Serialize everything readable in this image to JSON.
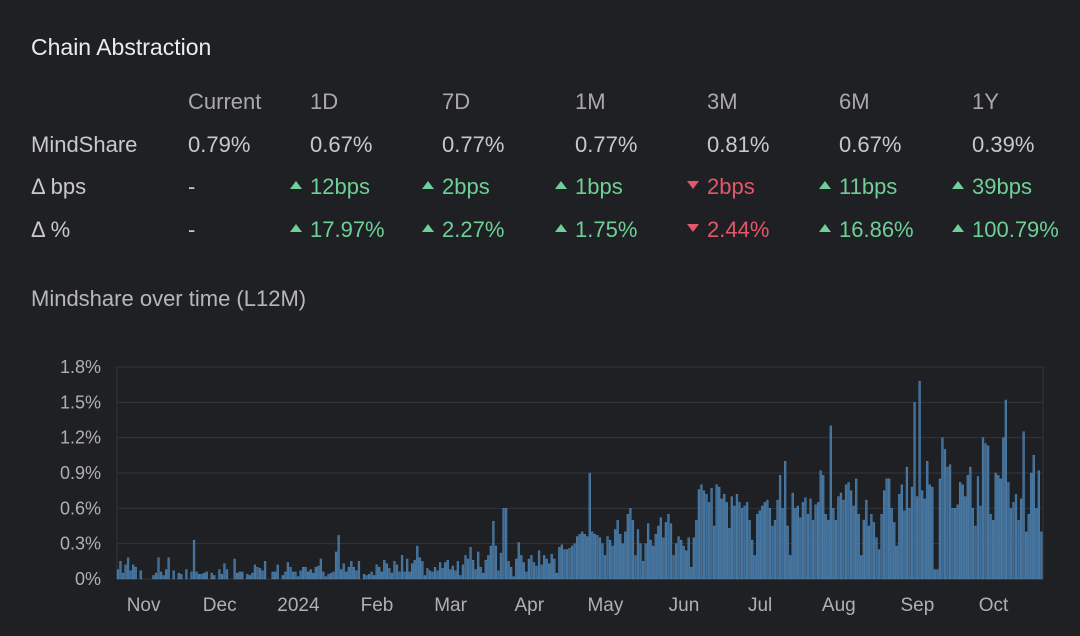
{
  "title": "Chain Abstraction",
  "table": {
    "headers": [
      "",
      "Current",
      "1D",
      "7D",
      "1M",
      "3M",
      "6M",
      "1Y"
    ],
    "rows": [
      {
        "label": "MindShare",
        "cells": [
          {
            "v": "0.79%",
            "dir": ""
          },
          {
            "v": "0.67%",
            "dir": ""
          },
          {
            "v": "0.77%",
            "dir": ""
          },
          {
            "v": "0.77%",
            "dir": ""
          },
          {
            "v": "0.81%",
            "dir": ""
          },
          {
            "v": "0.67%",
            "dir": ""
          },
          {
            "v": "0.39%",
            "dir": ""
          }
        ]
      },
      {
        "label": "Δ bps",
        "cells": [
          {
            "v": "-",
            "dir": ""
          },
          {
            "v": "12bps",
            "dir": "up"
          },
          {
            "v": "2bps",
            "dir": "up"
          },
          {
            "v": "1bps",
            "dir": "up"
          },
          {
            "v": "2bps",
            "dir": "down"
          },
          {
            "v": "11bps",
            "dir": "up"
          },
          {
            "v": "39bps",
            "dir": "up"
          }
        ]
      },
      {
        "label": "Δ %",
        "cells": [
          {
            "v": "-",
            "dir": ""
          },
          {
            "v": "17.97%",
            "dir": "up"
          },
          {
            "v": "2.27%",
            "dir": "up"
          },
          {
            "v": "1.75%",
            "dir": "up"
          },
          {
            "v": "2.44%",
            "dir": "down"
          },
          {
            "v": "16.86%",
            "dir": "up"
          },
          {
            "v": "100.79%",
            "dir": "up"
          }
        ]
      }
    ]
  },
  "colors": {
    "up": "#6fcf97",
    "down": "#e5566b",
    "bar": "#3f6f98",
    "bar_edge": "#5a8fbf"
  },
  "chart_subtitle": "Mindshare over time (L12M)",
  "chart_data": {
    "type": "bar",
    "title": "Mindshare over time (L12M)",
    "xlabel": "",
    "ylabel": "",
    "ylim": [
      0,
      1.8
    ],
    "y_ticks": [
      {
        "v": 0,
        "label": "0%"
      },
      {
        "v": 0.3,
        "label": "0.3%"
      },
      {
        "v": 0.6,
        "label": "0.6%"
      },
      {
        "v": 0.9,
        "label": "0.9%"
      },
      {
        "v": 1.2,
        "label": "1.2%"
      },
      {
        "v": 1.5,
        "label": "1.5%"
      },
      {
        "v": 1.8,
        "label": "1.8%"
      }
    ],
    "x_ticks": [
      {
        "day": 10,
        "label": "Nov"
      },
      {
        "day": 40,
        "label": "Dec"
      },
      {
        "day": 71,
        "label": "2024"
      },
      {
        "day": 102,
        "label": "Feb"
      },
      {
        "day": 131,
        "label": "Mar"
      },
      {
        "day": 162,
        "label": "Apr"
      },
      {
        "day": 192,
        "label": "May"
      },
      {
        "day": 223,
        "label": "Jun"
      },
      {
        "day": 253,
        "label": "Jul"
      },
      {
        "day": 284,
        "label": "Aug"
      },
      {
        "day": 315,
        "label": "Sep"
      },
      {
        "day": 345,
        "label": "Oct"
      }
    ],
    "grid": true,
    "unit": "%",
    "values": [
      0.08,
      0.15,
      0.05,
      0.12,
      0.18,
      0.07,
      0.12,
      0.1,
      0,
      0.07,
      0,
      0,
      0,
      0,
      0.03,
      0.05,
      0.18,
      0.06,
      0.03,
      0.08,
      0.18,
      0,
      0.07,
      0,
      0.05,
      0.04,
      0,
      0.08,
      0,
      0.06,
      0.33,
      0.06,
      0.04,
      0.04,
      0.05,
      0.06,
      0,
      0.05,
      0.03,
      0,
      0.08,
      0.04,
      0.13,
      0.08,
      0,
      0,
      0.17,
      0.05,
      0.06,
      0.06,
      0,
      0.04,
      0.03,
      0.05,
      0.12,
      0.1,
      0.09,
      0.07,
      0.15,
      0,
      0,
      0.06,
      0.06,
      0.12,
      0,
      0.03,
      0.06,
      0.14,
      0.1,
      0.06,
      0.06,
      0.02,
      0.07,
      0.1,
      0.1,
      0.06,
      0.08,
      0.05,
      0.1,
      0.11,
      0.17,
      0.06,
      0.02,
      0.04,
      0.05,
      0.06,
      0.23,
      0.37,
      0.08,
      0.13,
      0.06,
      0.1,
      0.15,
      0.1,
      0.07,
      0.15,
      0,
      0.04,
      0.03,
      0.04,
      0.06,
      0.03,
      0.12,
      0.1,
      0.06,
      0.16,
      0.13,
      0.09,
      0.05,
      0.15,
      0.12,
      0.06,
      0.2,
      0.06,
      0.17,
      0.06,
      0.13,
      0.16,
      0.28,
      0.18,
      0.15,
      0.03,
      0.09,
      0.07,
      0.06,
      0.1,
      0.07,
      0.14,
      0.09,
      0.14,
      0.16,
      0.08,
      0.11,
      0.07,
      0.15,
      0.03,
      0.12,
      0.2,
      0.17,
      0.27,
      0.16,
      0.08,
      0.23,
      0.1,
      0.05,
      0.16,
      0.2,
      0.28,
      0.49,
      0.28,
      0.07,
      0.22,
      0.6,
      0.6,
      0.15,
      0.1,
      0.02,
      0.17,
      0.31,
      0.2,
      0.14,
      0.06,
      0.17,
      0.2,
      0.14,
      0.11,
      0.24,
      0.12,
      0.2,
      0.17,
      0.13,
      0.21,
      0.17,
      0.05,
      0.27,
      0.29,
      0.25,
      0.25,
      0.26,
      0.28,
      0.3,
      0.36,
      0.38,
      0.4,
      0.38,
      0.36,
      0.9,
      0.4,
      0.38,
      0.37,
      0.35,
      0.3,
      0.2,
      0.36,
      0.33,
      0.28,
      0.42,
      0.5,
      0.38,
      0.3,
      0.4,
      0.55,
      0.6,
      0.5,
      0.2,
      0.42,
      0.3,
      0.15,
      0.3,
      0.47,
      0.33,
      0.28,
      0.38,
      0.45,
      0.52,
      0.35,
      0.48,
      0.55,
      0.47,
      0.2,
      0.3,
      0.36,
      0.33,
      0.28,
      0.24,
      0.35,
      0.1,
      0.35,
      0.5,
      0.76,
      0.8,
      0.75,
      0.72,
      0.65,
      0.77,
      0.45,
      0.8,
      0.78,
      0.68,
      0.72,
      0.65,
      0.43,
      0.7,
      0.62,
      0.72,
      0.65,
      0.6,
      0.62,
      0.65,
      0.5,
      0.33,
      0.2,
      0.55,
      0.58,
      0.62,
      0.65,
      0.67,
      0.6,
      0.45,
      0.5,
      0.67,
      0.88,
      0.6,
      1.0,
      0.45,
      0.2,
      0.73,
      0.6,
      0.62,
      0.52,
      0.65,
      0.69,
      0.55,
      0.68,
      0.5,
      0.63,
      0.65,
      0.92,
      0.88,
      0.55,
      0.5,
      1.3,
      0.6,
      0.5,
      0.7,
      0.73,
      0.67,
      0.8,
      0.82,
      0.75,
      0.62,
      0.85,
      0.55,
      0.2,
      0.5,
      0.67,
      0.45,
      0.55,
      0.48,
      0.35,
      0.25,
      0.55,
      0.75,
      0.85,
      0.85,
      0.6,
      0.48,
      0.28,
      0.72,
      0.8,
      0.58,
      0.95,
      0.6,
      0.78,
      1.5,
      0.7,
      1.68,
      0.75,
      0.68,
      1.0,
      0.8,
      0.78,
      0.08,
      0.08,
      0.85,
      1.2,
      1.1,
      0.95,
      0.97,
      0.6,
      0.6,
      0.63,
      0.82,
      0.8,
      0.7,
      0.88,
      0.95,
      0.6,
      0.45,
      0.87,
      0.62,
      1.2,
      1.15,
      1.13,
      0.55,
      0.5,
      0.9,
      0.88,
      0.85,
      1.2,
      1.52,
      0.82,
      0.6,
      0.65,
      0.72,
      0.5,
      0.68,
      1.25,
      0.4,
      0.55,
      0.9,
      1.05,
      0.6,
      0.92,
      0.4
    ]
  }
}
